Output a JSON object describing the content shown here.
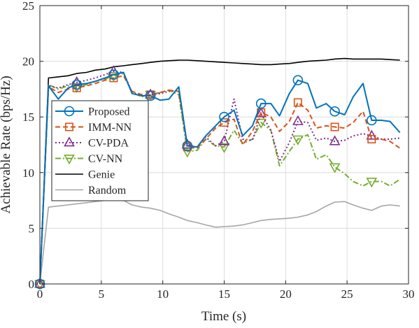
{
  "chart_data": {
    "type": "line",
    "title": "",
    "xlabel": "Time (s)",
    "ylabel": "Achievable Rate (bps/Hz)",
    "xlim": [
      0,
      30
    ],
    "ylim": [
      0,
      25
    ],
    "xticks": [
      0,
      5,
      10,
      15,
      20,
      25,
      30
    ],
    "yticks": [
      0,
      5,
      10,
      15,
      20,
      25
    ],
    "grid": true,
    "legend_position": "center-left",
    "series": [
      {
        "name": "Proposed",
        "color": "#0072BD",
        "line_style": "solid",
        "marker": "circle",
        "x": [
          0,
          0.7,
          1.5,
          2.3,
          3,
          3.8,
          4.5,
          5.3,
          6,
          6.8,
          7.5,
          8.3,
          9,
          9.8,
          10.5,
          11.3,
          12,
          12.8,
          13.5,
          14.3,
          15,
          15.8,
          16.5,
          17.3,
          18,
          18.8,
          19.5,
          20.3,
          21,
          21.8,
          22.5,
          23.3,
          24,
          24.8,
          25.5,
          26.3,
          27,
          27.8,
          28.5,
          29.3
        ],
        "y": [
          0,
          17.8,
          16.6,
          17.6,
          17.9,
          18.0,
          18.2,
          18.5,
          18.8,
          19.0,
          17.1,
          16.9,
          16.9,
          16.5,
          16.6,
          17.7,
          12.4,
          12.3,
          13.3,
          14.2,
          15.0,
          15.6,
          13.3,
          14.2,
          16.2,
          16.2,
          15.1,
          17.1,
          18.3,
          18.0,
          15.8,
          16.2,
          15.5,
          15.2,
          16.8,
          18.0,
          14.7,
          14.7,
          14.6,
          13.6
        ],
        "marker_at": [
          0,
          3,
          6,
          9,
          12,
          15,
          18,
          21,
          24,
          27
        ]
      },
      {
        "name": "IMM-NN",
        "color": "#D95319",
        "line_style": "dashed",
        "marker": "square",
        "x": [
          0,
          0.7,
          1.5,
          2.3,
          3,
          3.8,
          4.5,
          5.3,
          6,
          6.8,
          7.5,
          8.3,
          9,
          9.8,
          10.5,
          11.3,
          12,
          12.8,
          13.5,
          14.3,
          15,
          15.8,
          16.5,
          17.3,
          18,
          18.8,
          19.5,
          20.3,
          21,
          21.8,
          22.5,
          23.3,
          24,
          24.8,
          25.5,
          26.3,
          27,
          27.8,
          28.5,
          29.3
        ],
        "y": [
          0,
          17.7,
          17.2,
          17.5,
          17.6,
          17.8,
          18.0,
          18.3,
          18.5,
          18.7,
          17.3,
          17.0,
          17.0,
          17.2,
          17.4,
          17.3,
          12.3,
          12.2,
          13.0,
          14.0,
          14.5,
          14.8,
          12.5,
          13.7,
          15.4,
          15.0,
          13.7,
          14.6,
          16.3,
          15.6,
          14.0,
          14.2,
          14.1,
          14.0,
          14.5,
          15.5,
          13.0,
          13.0,
          12.8,
          12.2
        ],
        "marker_at": [
          0,
          3,
          6,
          9,
          12,
          15,
          18,
          21,
          24,
          27
        ]
      },
      {
        "name": "CV-PDA",
        "color": "#7E2F8E",
        "line_style": "dotted",
        "marker": "triangle-up",
        "x": [
          0,
          0.7,
          1.5,
          2.3,
          3,
          3.8,
          4.5,
          5.3,
          6,
          6.8,
          7.5,
          8.3,
          9,
          9.8,
          10.5,
          11.3,
          12,
          12.8,
          13.5,
          14.3,
          15,
          15.8,
          16.5,
          17.3,
          18,
          18.8,
          19.5,
          20.3,
          21,
          21.8,
          22.5,
          23.3,
          24,
          24.8,
          25.5,
          26.3,
          27,
          27.8,
          28.5,
          29.3
        ],
        "y": [
          0,
          17.8,
          17.6,
          17.9,
          18.1,
          18.3,
          18.5,
          18.8,
          19.1,
          19.0,
          17.2,
          16.9,
          17.0,
          17.1,
          17.3,
          17.4,
          12.5,
          12.3,
          13.2,
          12.4,
          12.8,
          16.6,
          13.0,
          12.9,
          15.3,
          13.8,
          11.0,
          12.7,
          14.6,
          14.5,
          12.9,
          13.1,
          12.8,
          12.9,
          13.3,
          13.5,
          13.3,
          13.0,
          13.0,
          13.1
        ],
        "marker_at": [
          0,
          3,
          6,
          9,
          12,
          15,
          18,
          21,
          24,
          27
        ]
      },
      {
        "name": "CV-NN",
        "color": "#77AC30",
        "line_style": "dashdot",
        "marker": "triangle-down",
        "x": [
          0,
          0.7,
          1.5,
          2.3,
          3,
          3.8,
          4.5,
          5.3,
          6,
          6.8,
          7.5,
          8.3,
          9,
          9.8,
          10.5,
          11.3,
          12,
          12.8,
          13.5,
          14.3,
          15,
          15.8,
          16.5,
          17.3,
          18,
          18.8,
          19.5,
          20.3,
          21,
          21.8,
          22.5,
          23.3,
          24,
          24.8,
          25.5,
          26.3,
          27,
          27.8,
          28.5,
          29.3
        ],
        "y": [
          0,
          17.9,
          17.5,
          17.8,
          17.7,
          17.9,
          18.2,
          18.4,
          18.7,
          18.9,
          17.2,
          16.8,
          17.0,
          17.2,
          17.4,
          17.0,
          11.9,
          12.0,
          13.0,
          12.4,
          12.3,
          13.8,
          12.6,
          13.0,
          14.5,
          13.8,
          10.6,
          11.9,
          13.0,
          13.4,
          11.2,
          11.6,
          10.5,
          9.9,
          9.2,
          8.8,
          9.2,
          9.2,
          8.8,
          9.4
        ],
        "marker_at": [
          0,
          3,
          6,
          9,
          12,
          15,
          18,
          21,
          24,
          27
        ]
      },
      {
        "name": "Genie",
        "color": "#000000",
        "line_style": "solid",
        "marker": "none",
        "x": [
          0,
          0.7,
          1.5,
          2.3,
          3,
          3.8,
          4.5,
          5.3,
          6,
          6.8,
          7.5,
          8.3,
          9,
          9.8,
          10.5,
          11.3,
          12,
          12.8,
          13.5,
          14.3,
          15,
          15.8,
          16.5,
          17.3,
          18,
          18.8,
          19.5,
          20.3,
          21,
          21.8,
          22.5,
          23.3,
          24,
          24.8,
          25.5,
          26.3,
          27,
          27.8,
          28.5,
          29.3
        ],
        "y": [
          0,
          18.5,
          18.6,
          18.7,
          18.9,
          19.0,
          19.2,
          19.3,
          19.5,
          19.6,
          19.7,
          19.8,
          19.9,
          20.0,
          20.05,
          20.1,
          20.1,
          20.05,
          20.0,
          19.95,
          19.9,
          19.85,
          19.8,
          19.75,
          19.7,
          19.7,
          19.75,
          19.8,
          19.9,
          20.0,
          20.05,
          20.1,
          20.2,
          20.25,
          20.2,
          20.2,
          20.2,
          20.2,
          20.15,
          20.1
        ],
        "marker_at": []
      },
      {
        "name": "Random",
        "color": "#A6A6A6",
        "line_style": "solid",
        "marker": "none",
        "x": [
          0,
          0.7,
          1.5,
          2.3,
          3,
          3.8,
          4.5,
          5.3,
          6,
          6.8,
          7.5,
          8.3,
          9,
          9.8,
          10.5,
          11.3,
          12,
          12.8,
          13.5,
          14.3,
          15,
          15.8,
          16.5,
          17.3,
          18,
          18.8,
          19.5,
          20.3,
          21,
          21.8,
          22.5,
          23.3,
          24,
          24.8,
          25.5,
          26.3,
          27,
          27.8,
          28.5,
          29.3
        ],
        "y": [
          0,
          6.9,
          7.0,
          7.1,
          7.2,
          7.3,
          7.4,
          7.5,
          7.6,
          7.5,
          7.1,
          6.9,
          6.8,
          6.6,
          6.3,
          6.0,
          5.7,
          5.5,
          5.3,
          5.1,
          5.15,
          5.2,
          5.3,
          5.5,
          5.7,
          5.8,
          5.85,
          5.9,
          6.0,
          6.2,
          6.5,
          7.0,
          7.35,
          7.4,
          7.1,
          6.8,
          6.6,
          7.0,
          7.1,
          7.0
        ],
        "marker_at": []
      }
    ]
  }
}
